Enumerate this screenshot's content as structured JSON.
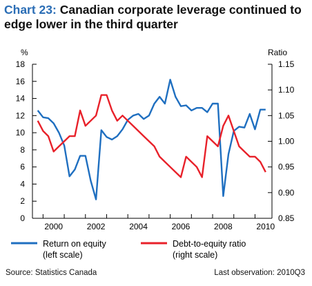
{
  "title_number": "Chart 23:",
  "title_text": "Canadian corporate leverage continued to edge lower in the third quarter",
  "source": "Source: Statistics Canada",
  "last_observation": "Last observation: 2010Q3",
  "colors": {
    "left_series": "#1f6fc0",
    "right_series": "#e8212a",
    "title_number": "#2a6db5"
  },
  "chart_data": {
    "type": "line",
    "xlim": [
      1999.5,
      2010.8
    ],
    "x_ticks": [
      2000,
      2002,
      2004,
      2006,
      2008,
      2010
    ],
    "left_axis": {
      "unit": "%",
      "ylim": [
        0,
        18
      ],
      "ticks": [
        0,
        2,
        4,
        6,
        8,
        10,
        12,
        14,
        16,
        18
      ]
    },
    "right_axis": {
      "unit": "Ratio",
      "ylim": [
        0.85,
        1.15
      ],
      "ticks": [
        0.85,
        0.9,
        0.95,
        1.0,
        1.05,
        1.1,
        1.15
      ]
    },
    "series": [
      {
        "name": "Return on equity",
        "name_line2": "(left scale)",
        "axis": "left",
        "color": "#1f6fc0",
        "x": [
          1999.75,
          2000.0,
          2000.25,
          2000.5,
          2000.75,
          2001.0,
          2001.25,
          2001.5,
          2001.75,
          2002.0,
          2002.25,
          2002.5,
          2002.75,
          2003.0,
          2003.25,
          2003.5,
          2003.75,
          2004.0,
          2004.25,
          2004.5,
          2004.75,
          2005.0,
          2005.25,
          2005.5,
          2005.75,
          2006.0,
          2006.25,
          2006.5,
          2006.75,
          2007.0,
          2007.25,
          2007.5,
          2007.75,
          2008.0,
          2008.25,
          2008.5,
          2008.75,
          2009.0,
          2009.25,
          2009.5,
          2009.75,
          2010.0,
          2010.25,
          2010.5
        ],
        "values": [
          12.6,
          11.8,
          11.7,
          11.1,
          10.0,
          8.5,
          4.9,
          5.7,
          7.3,
          7.3,
          4.4,
          2.2,
          10.3,
          9.5,
          9.2,
          9.6,
          10.4,
          11.5,
          12.0,
          12.2,
          11.6,
          12.0,
          13.4,
          14.2,
          13.4,
          16.2,
          14.2,
          13.1,
          13.2,
          12.6,
          12.9,
          12.9,
          12.4,
          13.4,
          13.4,
          2.6,
          7.5,
          10.2,
          10.7,
          10.6,
          12.2,
          10.4,
          12.7,
          12.7
        ]
      },
      {
        "name": "Debt-to-equity ratio",
        "name_line2": "(right scale)",
        "axis": "right",
        "color": "#e8212a",
        "x": [
          1999.75,
          2000.0,
          2000.25,
          2000.5,
          2000.75,
          2001.0,
          2001.25,
          2001.5,
          2001.75,
          2002.0,
          2002.25,
          2002.5,
          2002.75,
          2003.0,
          2003.25,
          2003.5,
          2003.75,
          2004.0,
          2004.25,
          2004.5,
          2004.75,
          2005.0,
          2005.25,
          2005.5,
          2005.75,
          2006.0,
          2006.25,
          2006.5,
          2006.75,
          2007.0,
          2007.25,
          2007.5,
          2007.75,
          2008.0,
          2008.25,
          2008.5,
          2008.75,
          2009.0,
          2009.25,
          2009.5,
          2009.75,
          2010.0,
          2010.25,
          2010.5
        ],
        "values": [
          1.04,
          1.02,
          1.01,
          0.98,
          0.99,
          1.0,
          1.01,
          1.01,
          1.06,
          1.03,
          1.04,
          1.05,
          1.09,
          1.09,
          1.06,
          1.04,
          1.05,
          1.04,
          1.03,
          1.02,
          1.01,
          1.0,
          0.99,
          0.97,
          0.96,
          0.95,
          0.94,
          0.93,
          0.97,
          0.96,
          0.95,
          0.93,
          1.01,
          1.0,
          0.99,
          1.03,
          1.05,
          1.02,
          0.99,
          0.98,
          0.97,
          0.97,
          0.96,
          0.94
        ]
      }
    ],
    "legend_position": "bottom",
    "grid": false
  }
}
